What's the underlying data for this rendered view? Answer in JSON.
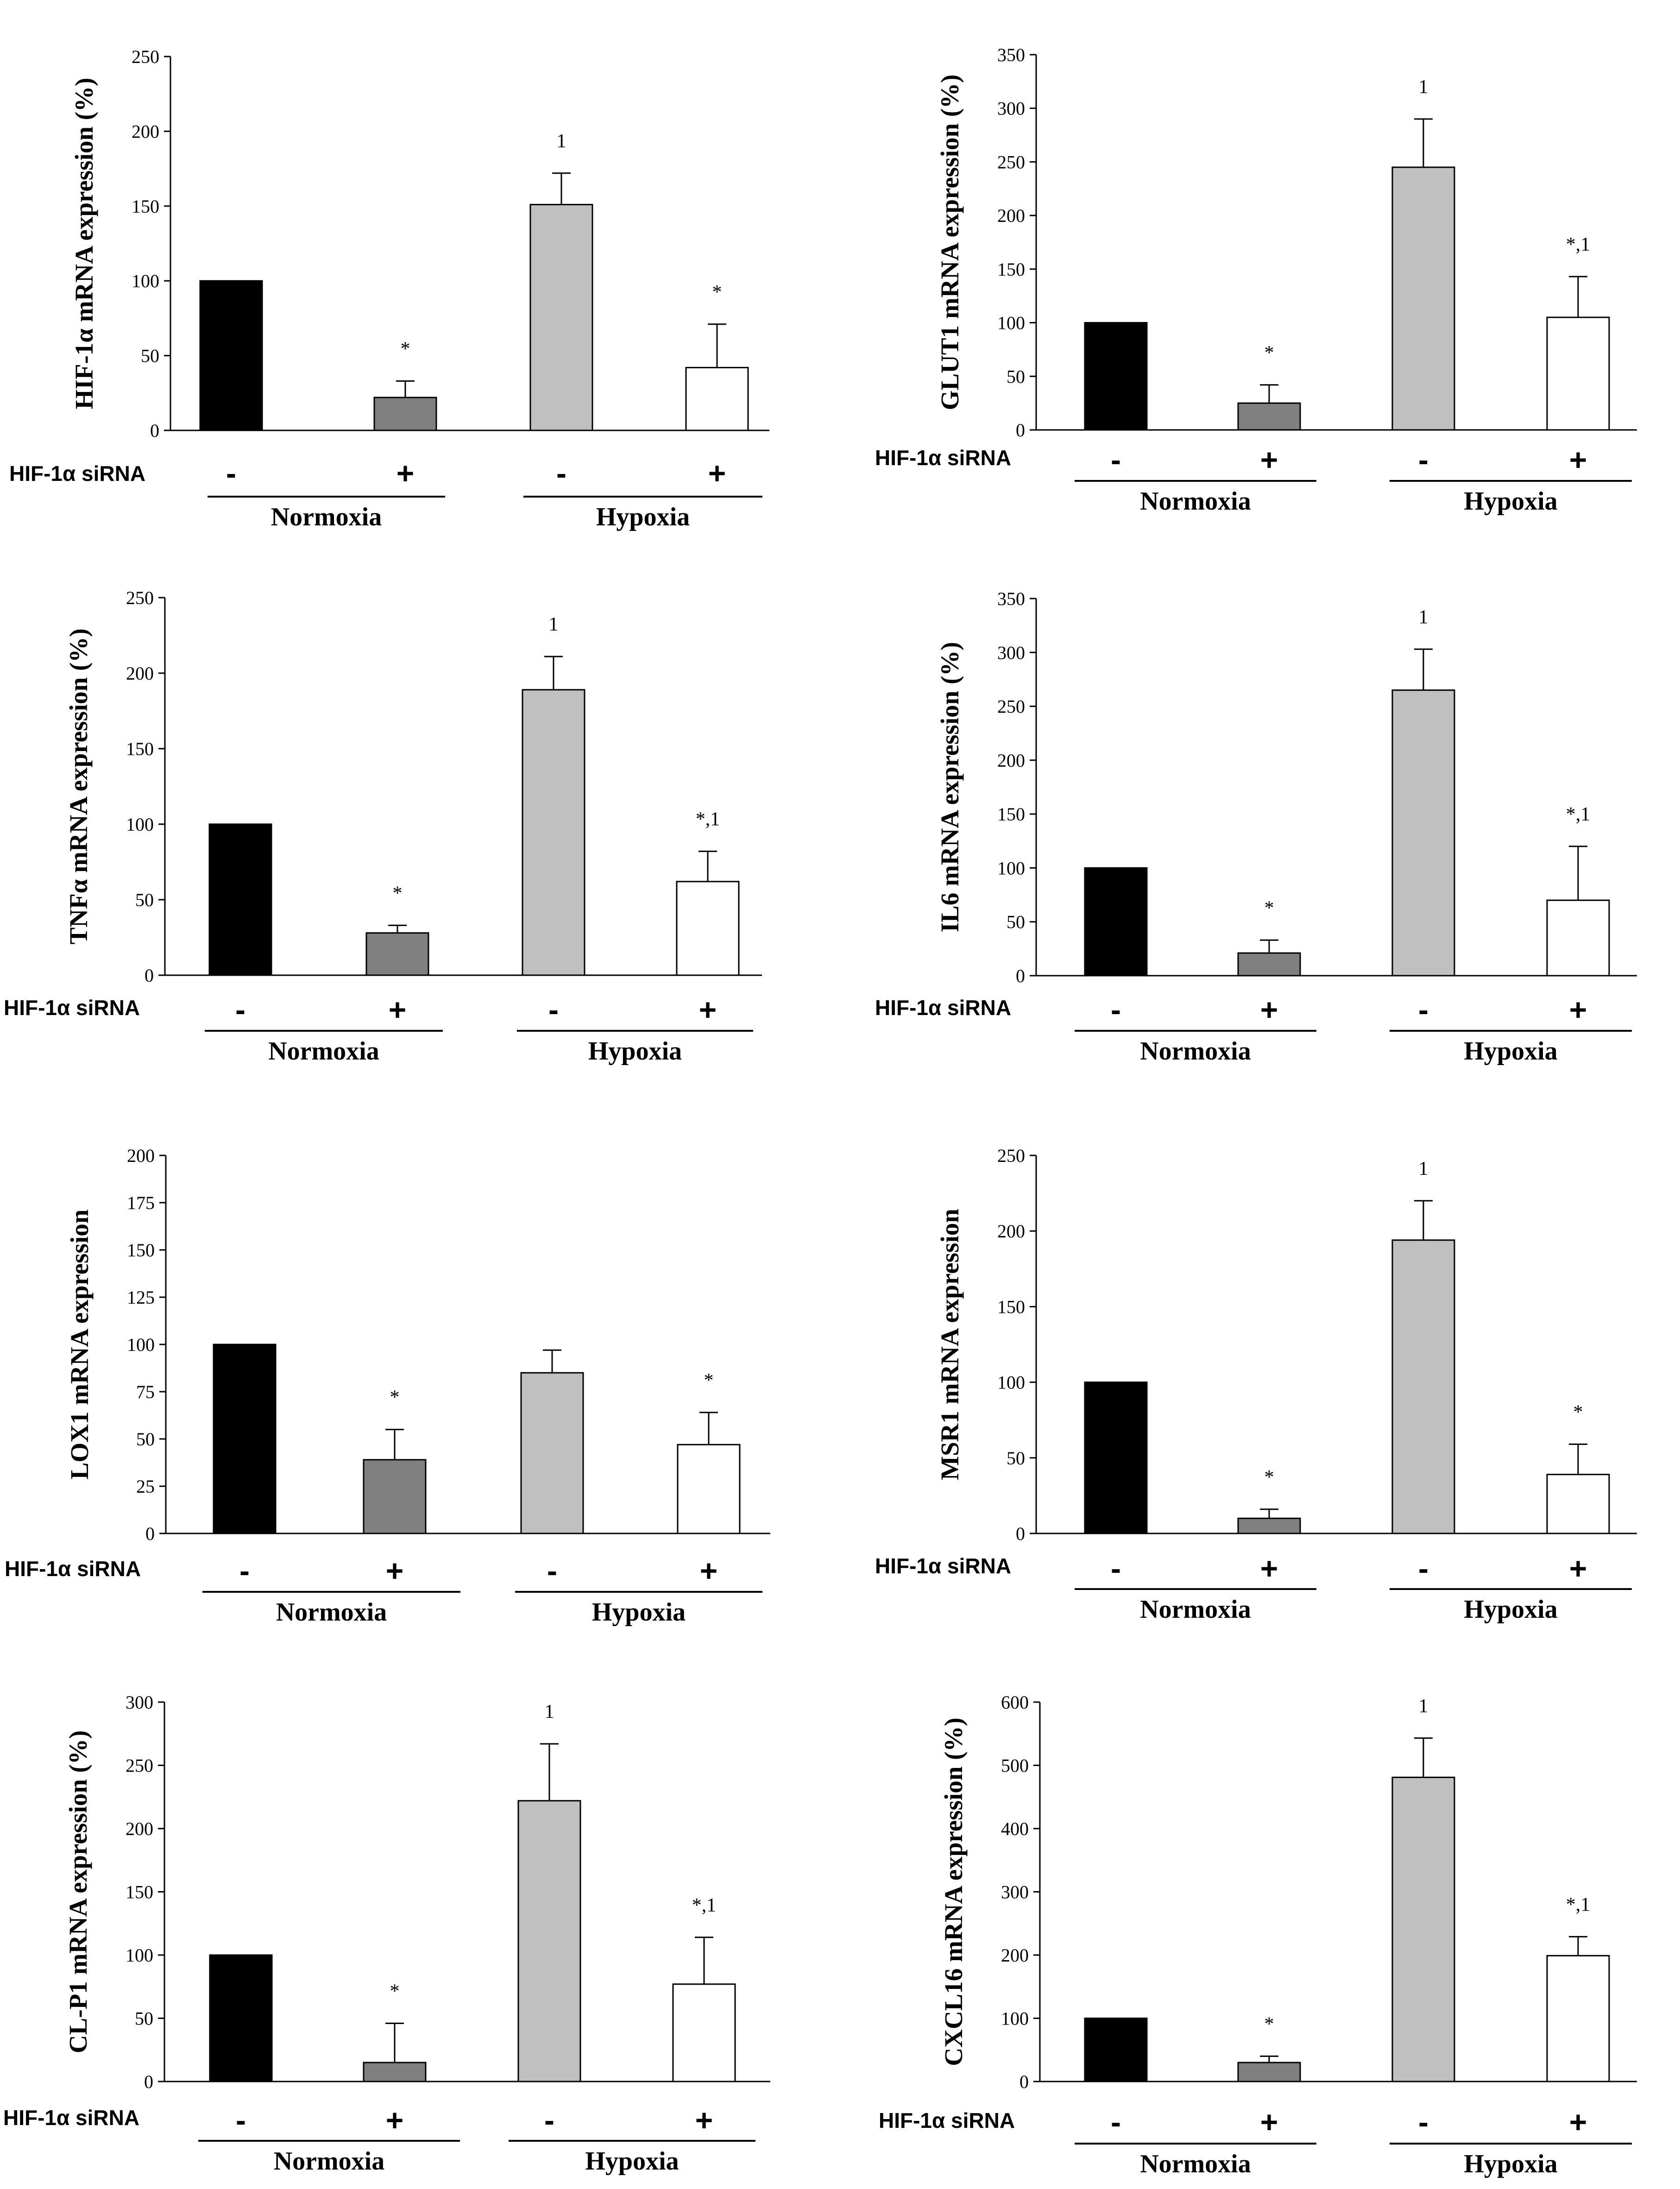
{
  "treatment_label": "HIF-1α siRNA",
  "sign_minus": "-",
  "sign_plus": "+",
  "group_labels": [
    "Normoxia",
    "Hypoxia"
  ],
  "colors": {
    "bar1": "#000000",
    "bar2": "#808080",
    "bar3": "#c0c0c0",
    "bar4": "#ffffff",
    "outline": "#000000"
  },
  "chart_data": [
    {
      "type": "bar",
      "ylabel": "HIF-1α mRNA expression (%)",
      "yticks": [
        0,
        50,
        100,
        150,
        200,
        250
      ],
      "ylim": [
        0,
        250
      ],
      "values": [
        100,
        22,
        151,
        42
      ],
      "errors": [
        0,
        11,
        21,
        29
      ],
      "annotations": [
        "",
        "*",
        "1",
        "*"
      ]
    },
    {
      "type": "bar",
      "ylabel": "GLUT1 mRNA expression (%)",
      "yticks": [
        0,
        50,
        100,
        150,
        200,
        250,
        300,
        350
      ],
      "ylim": [
        0,
        350
      ],
      "values": [
        100,
        25,
        245,
        105
      ],
      "errors": [
        0,
        17,
        45,
        38
      ],
      "annotations": [
        "",
        "*",
        "1",
        "*,1"
      ]
    },
    {
      "type": "bar",
      "ylabel": "TNFα mRNA expression (%)",
      "yticks": [
        0,
        50,
        100,
        150,
        200,
        250
      ],
      "ylim": [
        0,
        250
      ],
      "values": [
        100,
        28,
        189,
        62
      ],
      "errors": [
        0,
        5,
        22,
        20
      ],
      "annotations": [
        "",
        "*",
        "1",
        "*,1"
      ]
    },
    {
      "type": "bar",
      "ylabel": "IL6 mRNA expression (%)",
      "yticks": [
        0,
        50,
        100,
        150,
        200,
        250,
        300,
        350
      ],
      "ylim": [
        0,
        350
      ],
      "values": [
        100,
        21,
        265,
        70
      ],
      "errors": [
        0,
        12,
        38,
        50
      ],
      "annotations": [
        "",
        "*",
        "1",
        "*,1"
      ]
    },
    {
      "type": "bar",
      "ylabel": "LOX1 mRNA expression",
      "yticks": [
        0,
        25,
        50,
        75,
        100,
        125,
        150,
        175,
        200
      ],
      "ylim": [
        0,
        200
      ],
      "values": [
        100,
        39,
        85,
        47
      ],
      "errors": [
        0,
        16,
        12,
        17
      ],
      "annotations": [
        "",
        "*",
        "",
        "*"
      ]
    },
    {
      "type": "bar",
      "ylabel": "MSR1 mRNA expression",
      "yticks": [
        0,
        50,
        100,
        150,
        200,
        250
      ],
      "ylim": [
        0,
        250
      ],
      "values": [
        100,
        10,
        194,
        39
      ],
      "errors": [
        0,
        6,
        26,
        20
      ],
      "annotations": [
        "",
        "*",
        "1",
        "*"
      ]
    },
    {
      "type": "bar",
      "ylabel": "CL-P1 mRNA expression (%)",
      "yticks": [
        0,
        50,
        100,
        150,
        200,
        250,
        300
      ],
      "ylim": [
        0,
        300
      ],
      "values": [
        100,
        15,
        222,
        77
      ],
      "errors": [
        0,
        31,
        45,
        37
      ],
      "annotations": [
        "",
        "*",
        "1",
        "*,1"
      ]
    },
    {
      "type": "bar",
      "ylabel": "CXCL16 mRNA expression (%)",
      "yticks": [
        0,
        100,
        200,
        300,
        400,
        500,
        600
      ],
      "ylim": [
        0,
        600
      ],
      "values": [
        100,
        30,
        481,
        199
      ],
      "errors": [
        0,
        10,
        62,
        30
      ],
      "annotations": [
        "",
        "*",
        "1",
        "*,1"
      ]
    }
  ]
}
